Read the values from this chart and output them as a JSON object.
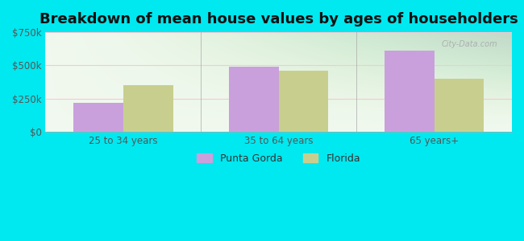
{
  "title": "Breakdown of mean house values by ages of householders",
  "categories": [
    "25 to 34 years",
    "35 to 64 years",
    "65 years+"
  ],
  "punta_gorda": [
    220000,
    490000,
    610000
  ],
  "florida": [
    350000,
    460000,
    400000
  ],
  "punta_gorda_color": "#c9a0dc",
  "florida_color": "#c8cf8e",
  "ylim": [
    0,
    750000
  ],
  "yticks": [
    0,
    250000,
    500000,
    750000
  ],
  "ytick_labels": [
    "$0",
    "$250k",
    "$500k",
    "$750k"
  ],
  "bg_outer": "#00e8f0",
  "legend_punta_gorda": "Punta Gorda",
  "legend_florida": "Florida",
  "title_fontsize": 13,
  "bar_width": 0.32
}
